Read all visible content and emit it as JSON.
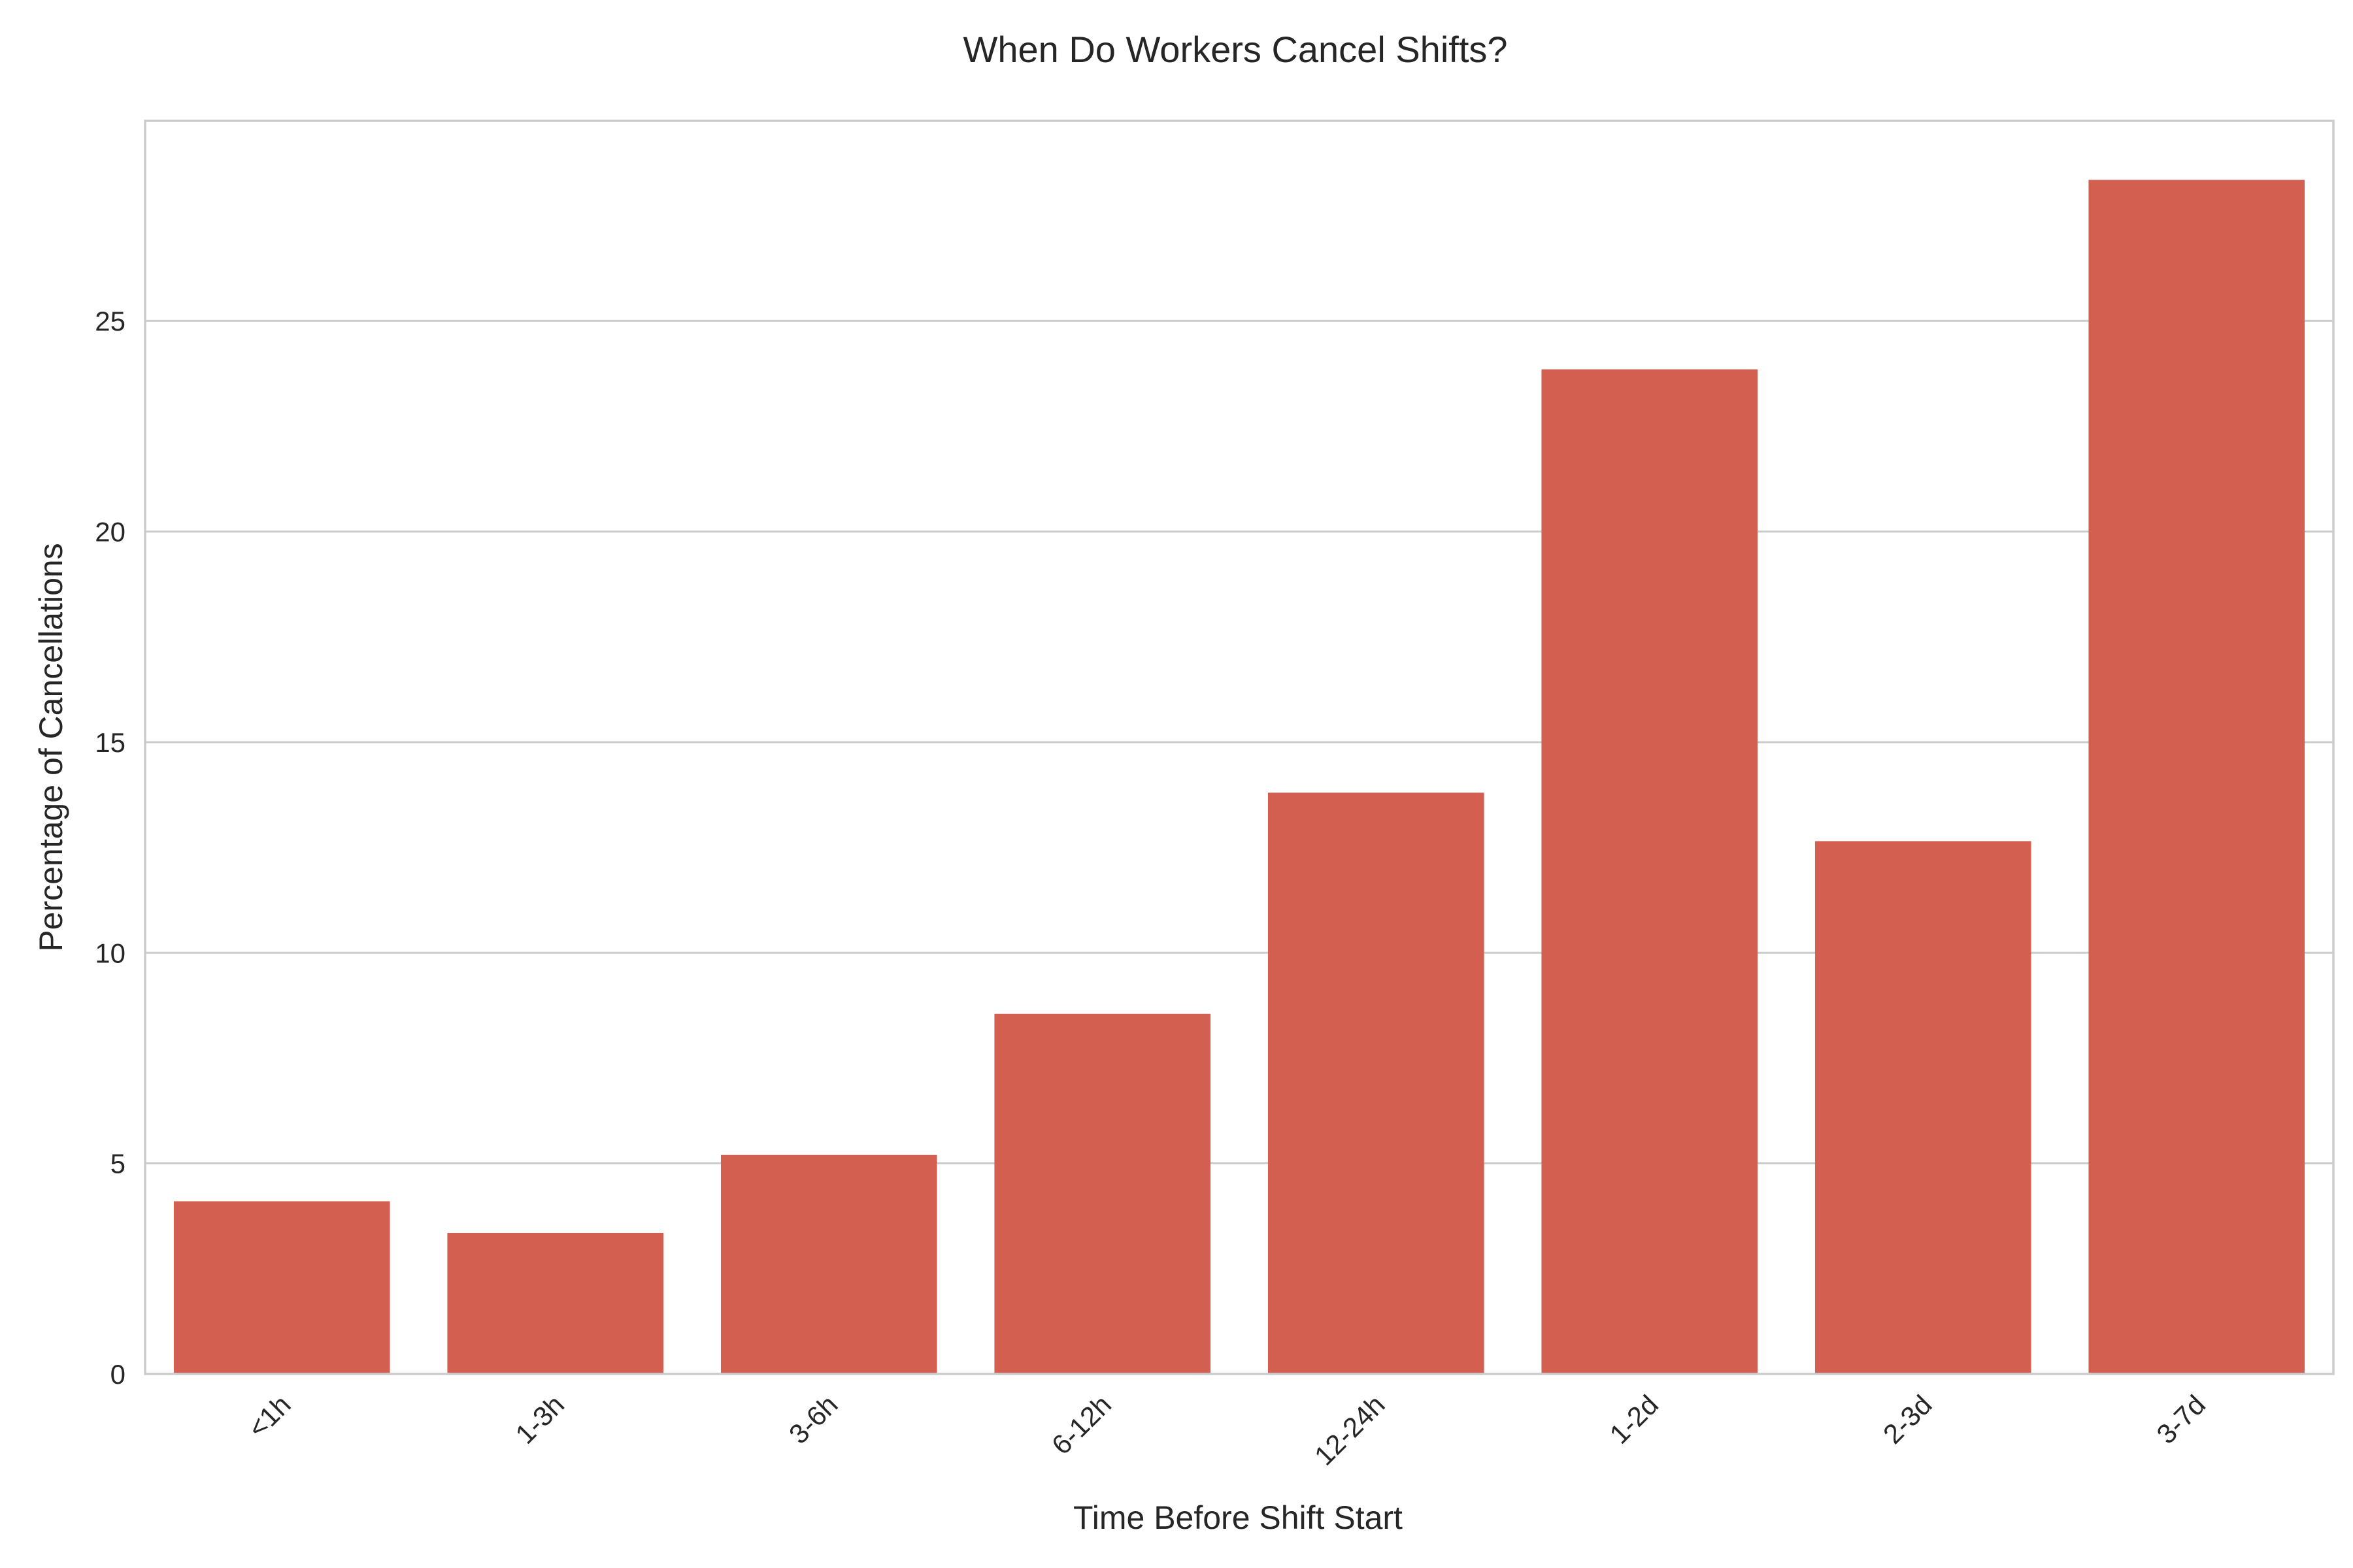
{
  "chart_data": {
    "type": "bar",
    "title": "When Do Workers Cancel Shifts?",
    "xlabel": "Time Before Shift Start",
    "ylabel": "Percentage of Cancellations",
    "categories": [
      "<1h",
      "1-3h",
      "3-6h",
      "6-12h",
      "12-24h",
      "1-2d",
      "2-3d",
      "3-7d"
    ],
    "values": [
      4.1,
      3.35,
      5.2,
      8.55,
      13.8,
      23.85,
      12.65,
      28.35
    ],
    "yticks": [
      0,
      5,
      10,
      15,
      20,
      25
    ],
    "ylim": [
      0,
      29.75
    ],
    "grid": true,
    "bar_color": "#d35f51"
  }
}
